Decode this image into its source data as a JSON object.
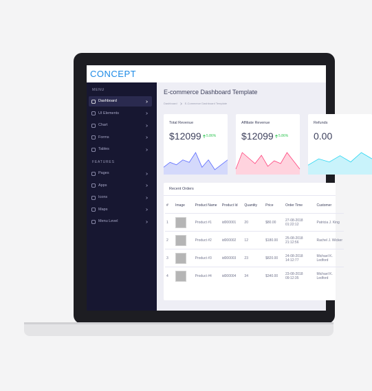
{
  "header": {
    "logo": "CONCEPT"
  },
  "sidebar": {
    "sections": [
      {
        "title": "MENU",
        "items": [
          "Dashboard",
          "UI Elements",
          "Chart",
          "Forms",
          "Tables"
        ]
      },
      {
        "title": "FEATURES",
        "items": [
          "Pages",
          "Apps",
          "Icons",
          "Maps",
          "Menu Level"
        ]
      }
    ]
  },
  "page": {
    "title": "E-commerce Dashboard Template",
    "breadcrumb": [
      "Dashboard",
      "E-Commerce Dashboard Template"
    ]
  },
  "cards": [
    {
      "label": "Total Revenue",
      "value": "$12099",
      "change": "5.86%",
      "color": "#5969ff",
      "fill": "#d4d9fb",
      "sparkline": [
        3,
        5,
        4,
        6,
        5,
        9,
        3,
        6,
        2,
        4,
        6
      ]
    },
    {
      "label": "Affiliate Revenue",
      "value": "$12099",
      "change": "5.86%",
      "color": "#ff407b",
      "fill": "#ffd3de",
      "sparkline": [
        2,
        8,
        6,
        4,
        7,
        3,
        5,
        4,
        8,
        5,
        2
      ]
    },
    {
      "label": "Refunds",
      "value": "0.00",
      "change": "",
      "color": "#25d5f2",
      "fill": "#c9f3fb",
      "sparkline": [
        3,
        5,
        4,
        6,
        4,
        7,
        5
      ]
    }
  ],
  "table": {
    "title": "Recent Orders",
    "columns": [
      "#",
      "Image",
      "Product Name",
      "Product Id",
      "Quantity",
      "Price",
      "Order Time",
      "Customer"
    ],
    "rows": [
      [
        "1",
        "Product #1",
        "id000001",
        "20",
        "$80.00",
        "27-08-2018 01:22:12",
        "Patricia J. King"
      ],
      [
        "2",
        "Product #2",
        "id000002",
        "12",
        "$180.00",
        "25-08-2018 21:12:56",
        "Rachel J. Wicker"
      ],
      [
        "3",
        "Product #3",
        "id000003",
        "23",
        "$820.00",
        "24-08-2018 14:12:77",
        "Michael K. Ledford"
      ],
      [
        "4",
        "Product #4",
        "id000004",
        "34",
        "$340.00",
        "23-08-2018 09:12:35",
        "Michael K. Ledford"
      ]
    ]
  }
}
